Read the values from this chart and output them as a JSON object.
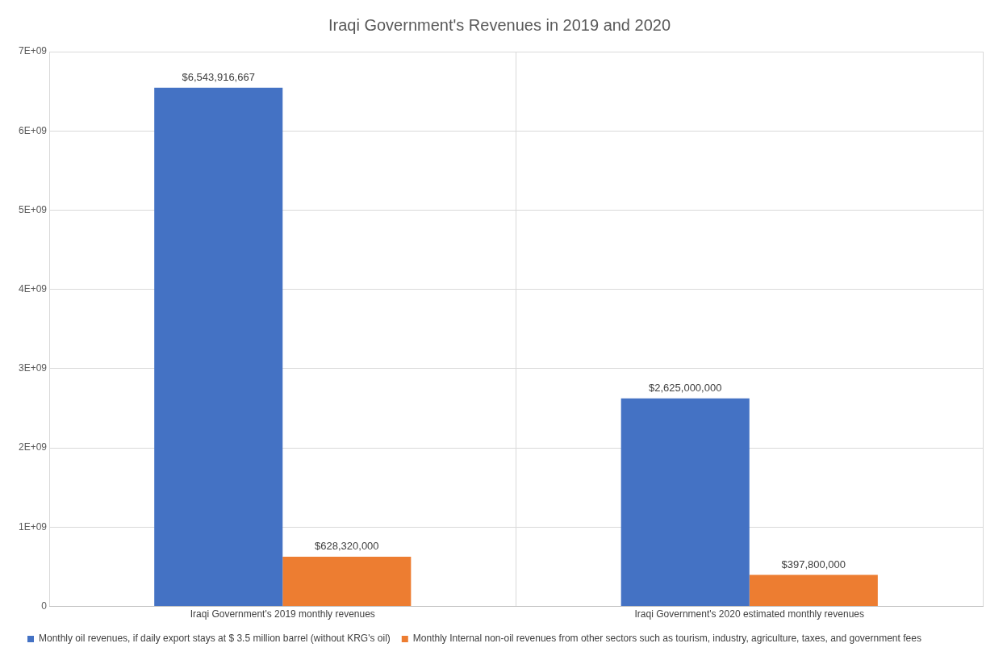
{
  "chart_data": {
    "type": "bar",
    "title": "Iraqi Government's Revenues in 2019 and 2020",
    "categories": [
      "Iraqi Government's 2019 monthly revenues",
      "Iraqi Government's 2020 estimated monthly revenues"
    ],
    "series": [
      {
        "name": "Monthly oil revenues, if daily export stays at $ 3.5 million barrel (without KRG's oil)",
        "color": "#4472c4",
        "values": [
          6543916667,
          2625000000
        ],
        "value_labels": [
          "$6,543,916,667",
          "$2,625,000,000"
        ]
      },
      {
        "name": "Monthly Internal non-oil revenues from other sectors such as tourism, industry, agriculture, taxes, and government fees",
        "color": "#ed7d31",
        "values": [
          628320000,
          397800000
        ],
        "value_labels": [
          "$628,320,000",
          "$397,800,000"
        ]
      }
    ],
    "ylim": [
      0,
      7000000000
    ],
    "yticks": [
      0,
      {
        "value": 1000000000,
        "label": "1E+09"
      },
      {
        "value": 2000000000,
        "label": "2E+09"
      },
      {
        "value": 3000000000,
        "label": "3E+09"
      },
      {
        "value": 4000000000,
        "label": "4E+09"
      },
      {
        "value": 5000000000,
        "label": "5E+09"
      },
      {
        "value": 6000000000,
        "label": "6E+09"
      },
      {
        "value": 7000000000,
        "label": "7E+09"
      }
    ],
    "grid": true,
    "legend": "bottom"
  }
}
